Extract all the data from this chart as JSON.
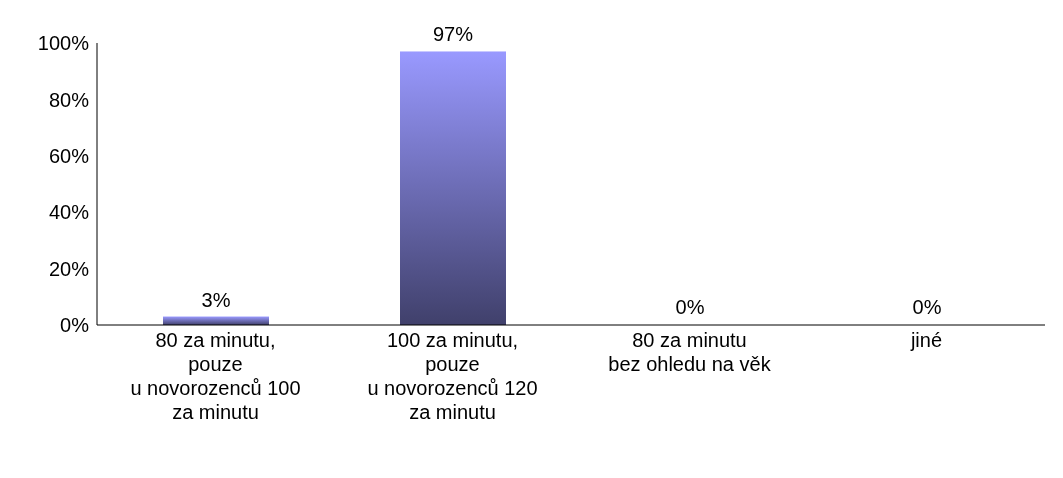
{
  "chart_data": {
    "type": "bar",
    "categories": [
      "80 za minutu,\npouze\nu novorozenců 100\nza minutu",
      "100 za minutu,\npouze\nu novorozenců 120\nza minutu",
      "80 za minutu\nbez ohledu na věk",
      "jiné"
    ],
    "values": [
      3,
      97,
      0,
      0
    ],
    "value_labels": [
      "3%",
      "97%",
      "0%",
      "0%"
    ],
    "color": "#9999ff",
    "ylim": [
      0,
      100
    ],
    "yticks": [
      {
        "value": 0,
        "label": "0%"
      },
      {
        "value": 20,
        "label": "20%"
      },
      {
        "value": 40,
        "label": "40%"
      },
      {
        "value": 60,
        "label": "60%"
      },
      {
        "value": 80,
        "label": "80%"
      },
      {
        "value": 100,
        "label": "100%"
      }
    ],
    "grid": false,
    "legend": false
  }
}
